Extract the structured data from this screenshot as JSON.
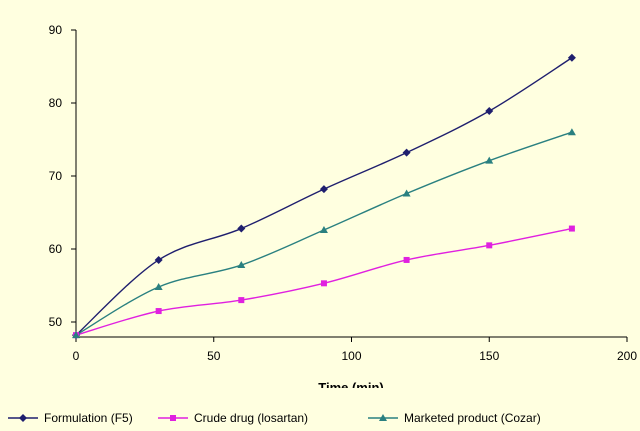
{
  "chart_data": {
    "type": "line",
    "xlabel": "Time (min)",
    "ylabel": "",
    "xlim": [
      0,
      200
    ],
    "ylim": [
      48,
      90
    ],
    "x_ticks": [
      0,
      50,
      100,
      150,
      200
    ],
    "y_ticks": [
      50,
      60,
      70,
      80,
      90
    ],
    "grid": false,
    "legend_position": "bottom",
    "x": [
      0,
      30,
      60,
      90,
      120,
      150,
      180
    ],
    "series": [
      {
        "name": "Formulation (F5)",
        "color": "#1f1f6e",
        "marker": "diamond",
        "values": [
          48.2,
          58.5,
          62.8,
          68.2,
          73.2,
          78.9,
          86.2
        ]
      },
      {
        "name": "Crude drug (losartan)",
        "color": "#e020e0",
        "marker": "square",
        "values": [
          48.2,
          51.5,
          53.0,
          55.3,
          58.5,
          60.5,
          62.8
        ]
      },
      {
        "name": "Marketed product (Cozar)",
        "color": "#2a8080",
        "marker": "triangle",
        "values": [
          48.2,
          54.8,
          57.8,
          62.6,
          67.6,
          72.1,
          76.0
        ]
      }
    ]
  }
}
